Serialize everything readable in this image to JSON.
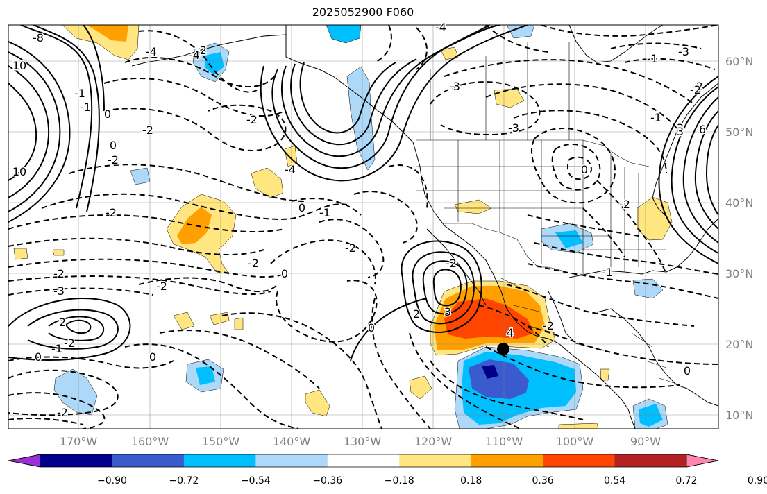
{
  "title": "2025052900 F060",
  "latitude_labels": [
    "60°N",
    "50°N",
    "40°N",
    "30°N",
    "20°N",
    "10°N"
  ],
  "longitude_labels": [
    "170°W",
    "160°W",
    "150°W",
    "140°W",
    "130°W",
    "120°W",
    "110°W",
    "100°W",
    "90°W"
  ],
  "colorbar": {
    "ticks": [
      "−0.90",
      "−0.72",
      "−0.54",
      "−0.36",
      "−0.18",
      "0.18",
      "0.36",
      "0.54",
      "0.72",
      "0.90"
    ],
    "colors": [
      "#9b30d9",
      "#00008b",
      "#3a5bcd",
      "#00bfff",
      "#add8f7",
      "#ffffff",
      "#ffe680",
      "#ffa000",
      "#ff4500",
      "#b22222",
      "#ff85b0"
    ]
  },
  "contour_labels": [
    "-8",
    "-4",
    "-2",
    "-2",
    "-2",
    "-2",
    "-4",
    "-4",
    "-4",
    "-3",
    "-3",
    "10",
    "-1",
    "-1",
    "0",
    "0",
    "-2",
    "-2",
    "0",
    "-1",
    "-2",
    "-2",
    "-2",
    "-3",
    "-3",
    "-1",
    "0",
    "-0",
    "-1",
    "-1",
    "0",
    "0",
    "10",
    "-2",
    "0",
    "-1",
    "2",
    "-2",
    "-2",
    "0",
    "-1",
    "-2",
    "2",
    "3",
    "4",
    "-2",
    "0",
    "0",
    "-2",
    "-2",
    "3",
    "-1",
    "6",
    "3"
  ]
}
